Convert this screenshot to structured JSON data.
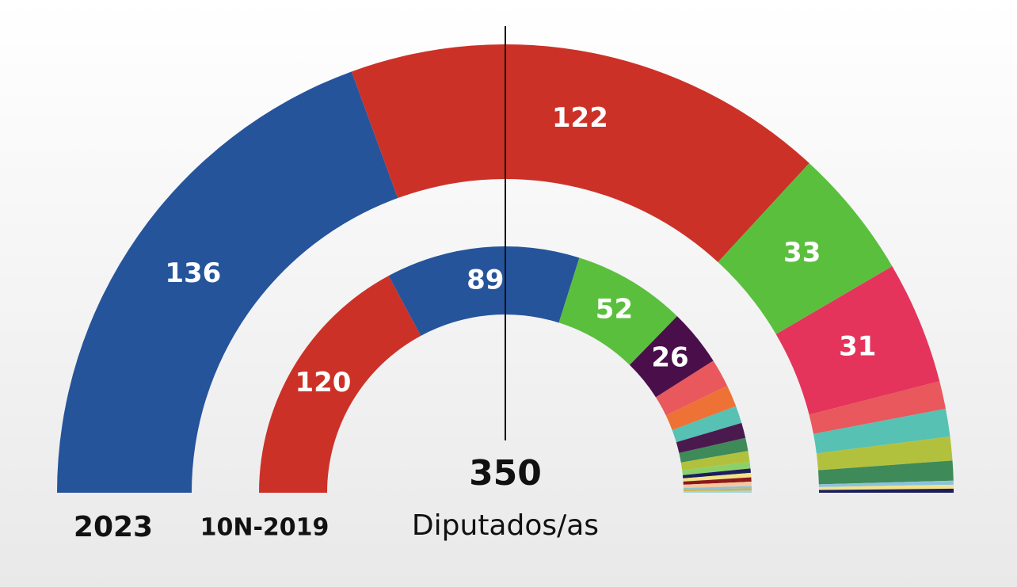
{
  "chart_data": {
    "type": "hemicycle",
    "total": 350,
    "subtitle": "Diputados/as",
    "rings": [
      {
        "name": "2023",
        "values": [
          136,
          122,
          33,
          31,
          7,
          7,
          6,
          5,
          1,
          1,
          1
        ],
        "value_labels": [
          "136",
          "122",
          "33",
          "31",
          null,
          null,
          null,
          null,
          null,
          null,
          null
        ],
        "colors": [
          "#25549b",
          "#cc3128",
          "#5bbf3e",
          "#e5345b",
          "#e8585c",
          "#57c1b3",
          "#b2c13d",
          "#3e8a58",
          "#8bc3de",
          "#f3e28a",
          "#1d1f5c"
        ]
      },
      {
        "name": "10N-2019",
        "values": [
          120,
          89,
          52,
          26,
          13,
          10,
          8,
          7,
          6,
          5,
          3,
          2,
          2,
          2,
          2,
          1,
          1,
          1
        ],
        "value_labels": [
          "120",
          "89",
          "52",
          "26",
          null,
          null,
          null,
          null,
          null,
          null,
          null,
          null,
          null,
          null,
          null,
          null,
          null,
          null
        ],
        "colors": [
          "#cc3128",
          "#25549b",
          "#5bbf3e",
          "#4a0f4a",
          "#e8585c",
          "#ee7236",
          "#57c1b3",
          "#4a1a4f",
          "#3e8a58",
          "#b2c13d",
          "#8bd16a",
          "#1d1f5c",
          "#f3e28a",
          "#8b1a1a",
          "#f5c6a0",
          "#8bc3de",
          "#d6b23a",
          "#9fd8e0"
        ]
      }
    ]
  }
}
